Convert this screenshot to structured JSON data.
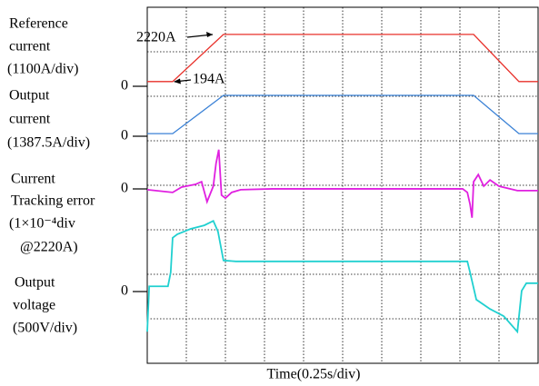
{
  "chart_data": {
    "type": "line",
    "x_label": "Time(0.25s/div)",
    "xlim": [
      0,
      10
    ],
    "ylim": [
      0,
      8
    ],
    "grid": true,
    "series": [
      {
        "label_lines": [
          "Reference",
          "current",
          "(1100A/div)"
        ],
        "zero_label": "0",
        "color": "#e8302a",
        "x": [
          0,
          0.65,
          1.95,
          8.35,
          9.51,
          10
        ],
        "values": [
          6.33,
          6.33,
          7.39,
          7.39,
          6.33,
          6.33
        ]
      },
      {
        "label_lines": [
          "Output",
          "current",
          "(1387.5A/div)"
        ],
        "zero_label": "0",
        "color": "#3b82d6",
        "x": [
          0,
          0.65,
          1.95,
          8.35,
          9.51,
          10
        ],
        "values": [
          5.16,
          5.16,
          6.02,
          6.02,
          5.16,
          5.16
        ]
      },
      {
        "label_lines": [
          "Current",
          "Tracking error",
          "(1×10⁻⁴div",
          "@2220A)"
        ],
        "zero_label": "0",
        "color": "#e020e0",
        "x": [
          0,
          0.65,
          0.88,
          1.23,
          1.39,
          1.53,
          1.69,
          1.76,
          1.83,
          1.9,
          2.0,
          2.16,
          2.39,
          3.2,
          5.52,
          8.07,
          8.19,
          8.26,
          8.31,
          8.35,
          8.47,
          8.61,
          8.77,
          9.0,
          9.47,
          10
        ],
        "values": [
          3.9,
          3.84,
          3.96,
          4.02,
          4.08,
          3.63,
          3.98,
          4.49,
          4.8,
          3.78,
          3.71,
          3.84,
          3.9,
          3.92,
          3.92,
          3.92,
          3.84,
          3.57,
          3.27,
          4.08,
          4.24,
          3.98,
          4.12,
          3.98,
          3.88,
          3.88
        ]
      },
      {
        "label_lines": [
          "Output",
          "voltage",
          "(500V/div)"
        ],
        "zero_label": "0",
        "color": "#20d0d0",
        "x": [
          0,
          0.05,
          0.53,
          0.6,
          0.65,
          0.77,
          1.11,
          1.46,
          1.69,
          1.81,
          1.95,
          2.27,
          5.52,
          8.19,
          8.26,
          8.42,
          8.77,
          9.12,
          9.47,
          9.58,
          9.7,
          10
        ],
        "values": [
          0.71,
          1.73,
          1.73,
          2.04,
          2.82,
          2.9,
          3.02,
          3.1,
          3.2,
          2.96,
          2.31,
          2.29,
          2.29,
          2.29,
          2.04,
          1.43,
          1.22,
          1.06,
          0.71,
          1.63,
          1.8,
          1.8
        ]
      }
    ],
    "annotations": [
      "2220A",
      "194A"
    ]
  }
}
